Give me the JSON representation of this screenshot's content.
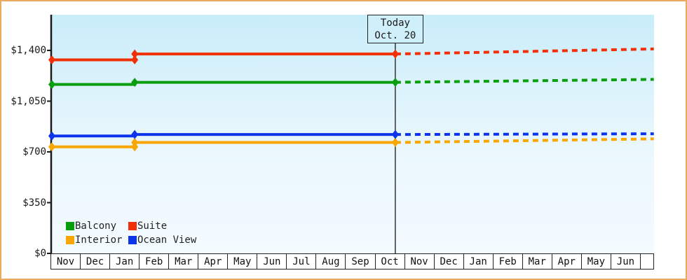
{
  "page": {
    "frame_border_color": "#ecaa5e",
    "background": "#ffffff"
  },
  "chart_data": {
    "type": "line",
    "title": "",
    "grid": false,
    "plot_background": {
      "top": "#c9edfa",
      "bottom": "#f3fbff"
    },
    "y_axis": {
      "ticks": [
        {
          "label": "$0",
          "value": 0
        },
        {
          "label": "$350",
          "value": 350
        },
        {
          "label": "$700",
          "value": 700
        },
        {
          "label": "$1,050",
          "value": 1050
        },
        {
          "label": "$1,400",
          "value": 1400
        }
      ],
      "ylim": [
        0,
        1646
      ]
    },
    "x_axis": {
      "months": [
        "Nov",
        "Dec",
        "Jan",
        "Feb",
        "Mar",
        "Apr",
        "May",
        "Jun",
        "Jul",
        "Aug",
        "Sep",
        "Oct",
        "Nov",
        "Dec",
        "Jan",
        "Feb",
        "Mar",
        "Apr",
        "May",
        "Jun"
      ],
      "trailing_partial_cell": true,
      "xlim_months": [
        0,
        20.45
      ]
    },
    "today_marker": {
      "line1": "Today",
      "line2": "Oct. 20",
      "position_months": 11.65
    },
    "series": [
      {
        "name": "Balcony",
        "color": "#0a9e0f",
        "solid_points": [
          [
            0,
            1165
          ],
          [
            2.81,
            1165
          ],
          [
            2.81,
            1180
          ],
          [
            11.65,
            1180
          ]
        ],
        "dashed_points": [
          [
            11.65,
            1180
          ],
          [
            20.42,
            1200
          ]
        ],
        "marker_points": [
          [
            0,
            1165
          ],
          [
            2.81,
            1180
          ],
          [
            11.65,
            1180
          ]
        ]
      },
      {
        "name": "Suite",
        "color": "#f23008",
        "solid_points": [
          [
            0,
            1335
          ],
          [
            2.81,
            1335
          ],
          [
            2.81,
            1375
          ],
          [
            11.65,
            1375
          ]
        ],
        "dashed_points": [
          [
            11.65,
            1375
          ],
          [
            20.42,
            1410
          ]
        ],
        "marker_points": [
          [
            0,
            1335
          ],
          [
            2.81,
            1335
          ],
          [
            2.81,
            1375
          ],
          [
            11.65,
            1375
          ]
        ]
      },
      {
        "name": "Interior",
        "color": "#f8a602",
        "solid_points": [
          [
            0,
            735
          ],
          [
            2.81,
            735
          ],
          [
            2.81,
            765
          ],
          [
            11.65,
            765
          ]
        ],
        "dashed_points": [
          [
            11.65,
            765
          ],
          [
            20.42,
            790
          ]
        ],
        "marker_points": [
          [
            0,
            735
          ],
          [
            2.81,
            735
          ],
          [
            2.81,
            765
          ],
          [
            11.65,
            765
          ]
        ]
      },
      {
        "name": "Ocean View",
        "color": "#0c34ea",
        "solid_points": [
          [
            0,
            810
          ],
          [
            2.81,
            810
          ],
          [
            2.81,
            820
          ],
          [
            11.65,
            820
          ]
        ],
        "dashed_points": [
          [
            11.65,
            820
          ],
          [
            20.42,
            825
          ]
        ],
        "marker_points": [
          [
            0,
            810
          ],
          [
            2.81,
            820
          ],
          [
            11.65,
            820
          ]
        ]
      }
    ],
    "legend": {
      "rows": [
        [
          "Balcony",
          "Suite"
        ],
        [
          "Interior",
          "Ocean View"
        ]
      ],
      "position": "bottom-left-inside"
    }
  }
}
